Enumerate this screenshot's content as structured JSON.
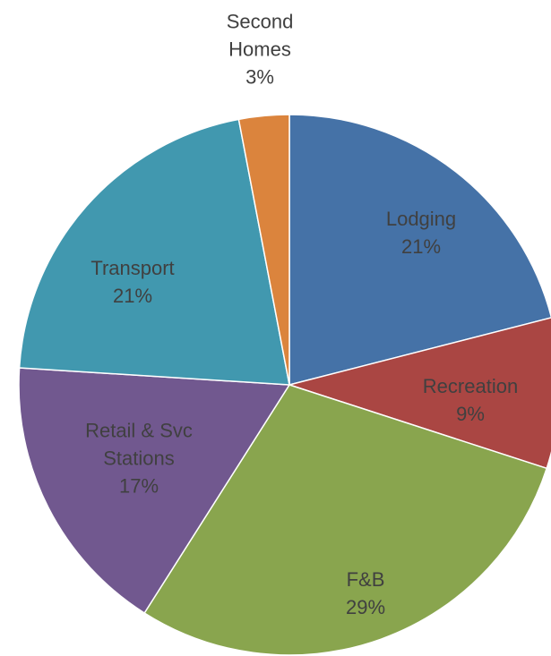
{
  "chart_data": {
    "type": "pie",
    "categories": [
      "Lodging",
      "Recreation",
      "F&B",
      "Retail & Svc Stations",
      "Transport",
      "Second Homes"
    ],
    "values": [
      21,
      9,
      29,
      17,
      21,
      3
    ],
    "value_labels": [
      "21%",
      "9%",
      "29%",
      "17%",
      "21%",
      "3%"
    ],
    "colors": [
      "#4572a7",
      "#aa4643",
      "#89a54e",
      "#71588f",
      "#4198af",
      "#db843d"
    ]
  }
}
